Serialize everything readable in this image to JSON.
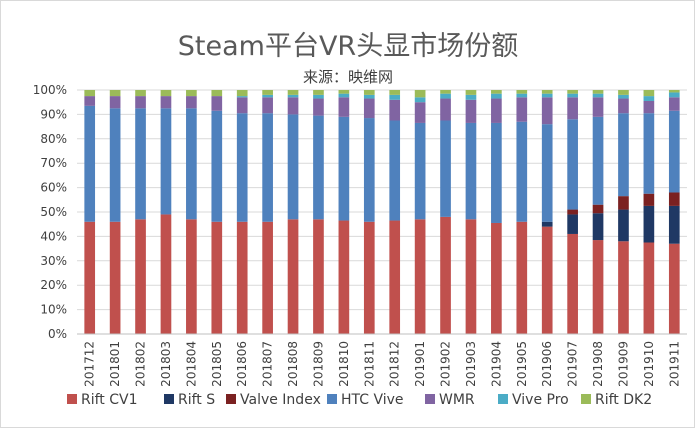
{
  "chart_data": {
    "type": "bar",
    "stacked": true,
    "title": "Steam平台VR头显市场份额",
    "subtitle": "来源：映维网",
    "ylim": [
      0,
      100
    ],
    "yticks": [
      "0%",
      "10%",
      "20%",
      "30%",
      "40%",
      "50%",
      "60%",
      "70%",
      "80%",
      "90%",
      "100%"
    ],
    "categories": [
      "201712",
      "201801",
      "201802",
      "201803",
      "201804",
      "201805",
      "201806",
      "201807",
      "201808",
      "201809",
      "201810",
      "201811",
      "201812",
      "201901",
      "201902",
      "201903",
      "201904",
      "201905",
      "201906",
      "201907",
      "201908",
      "201909",
      "201910",
      "201911"
    ],
    "series": [
      {
        "name": "Rift CV1",
        "color": "#C0504D",
        "values": [
          46,
          46,
          47,
          49,
          47,
          46,
          46,
          46,
          47,
          47,
          46.5,
          46,
          46.5,
          47,
          48,
          47,
          45.5,
          46,
          44,
          41,
          38.5,
          38,
          37.5,
          37
        ]
      },
      {
        "name": "Rift S",
        "color": "#1F3864",
        "values": [
          0,
          0,
          0,
          0,
          0,
          0,
          0,
          0,
          0,
          0,
          0,
          0,
          0,
          0,
          0,
          0,
          0,
          0,
          2,
          8,
          11,
          13,
          15,
          15.5
        ]
      },
      {
        "name": "Valve Index",
        "color": "#7B2121",
        "values": [
          0,
          0,
          0,
          0,
          0,
          0,
          0,
          0,
          0,
          0,
          0,
          0,
          0,
          0,
          0,
          0,
          0,
          0,
          0,
          2,
          3.5,
          5.5,
          5,
          5.5
        ]
      },
      {
        "name": "HTC Vive",
        "color": "#4F81BD",
        "values": [
          47.5,
          46.5,
          45.5,
          43.5,
          45.5,
          45.5,
          44.5,
          44.5,
          43,
          42.5,
          42.5,
          42.5,
          41,
          39.5,
          39.5,
          39.5,
          41,
          41,
          40,
          37,
          36,
          34,
          33,
          33.5
        ]
      },
      {
        "name": "WMR",
        "color": "#8064A2",
        "values": [
          4,
          5,
          5,
          5,
          5,
          6,
          6.5,
          6.5,
          7,
          7,
          8,
          8,
          8.5,
          8.5,
          9,
          9.5,
          10,
          10,
          11,
          9,
          8,
          6,
          5,
          5.5
        ]
      },
      {
        "name": "Vive Pro",
        "color": "#4BACC6",
        "values": [
          0,
          0,
          0,
          0,
          0,
          0,
          0.5,
          1,
          1,
          1.5,
          1.5,
          1.5,
          2,
          2,
          2,
          2,
          2,
          1.5,
          1.5,
          1.5,
          1.5,
          1.5,
          2,
          2
        ]
      },
      {
        "name": "Rift DK2",
        "color": "#9BBB59",
        "values": [
          2.5,
          2.5,
          2.5,
          2.5,
          2.5,
          2.5,
          2.5,
          2,
          2,
          2,
          1.5,
          2,
          2,
          3,
          1.5,
          2,
          1.5,
          1.5,
          1.5,
          1.5,
          1.5,
          2,
          2.5,
          1
        ]
      }
    ]
  }
}
